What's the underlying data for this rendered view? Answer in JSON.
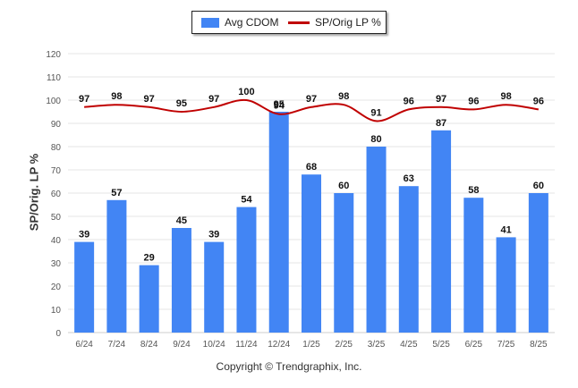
{
  "legend": {
    "bar_label": "Avg CDOM",
    "line_label": "SP/Orig LP %"
  },
  "footer": {
    "copyright": "Copyright © Trendgraphix, Inc."
  },
  "colors": {
    "bar": "#4285f4",
    "line": "#c00000",
    "grid": "#e6e6e6",
    "axis_text": "#555555"
  },
  "chart_data": {
    "type": "bar",
    "categories": [
      "6/24",
      "7/24",
      "8/24",
      "9/24",
      "10/24",
      "11/24",
      "12/24",
      "1/25",
      "2/25",
      "3/25",
      "4/25",
      "5/25",
      "6/25",
      "7/25",
      "8/25"
    ],
    "series": [
      {
        "name": "Avg CDOM",
        "type": "bar",
        "values": [
          39,
          57,
          29,
          45,
          39,
          54,
          95,
          68,
          60,
          80,
          63,
          87,
          58,
          41,
          60
        ]
      },
      {
        "name": "SP/Orig LP %",
        "type": "line",
        "values": [
          97,
          98,
          97,
          95,
          97,
          100,
          94,
          97,
          98,
          91,
          96,
          97,
          96,
          98,
          96
        ]
      }
    ],
    "ylabel": "SP/Orig. LP %",
    "ylim": [
      0,
      120
    ],
    "yticks": [
      0,
      10,
      20,
      30,
      40,
      50,
      60,
      70,
      80,
      90,
      100,
      110,
      120
    ],
    "grid": true,
    "legend_position": "top-center"
  }
}
